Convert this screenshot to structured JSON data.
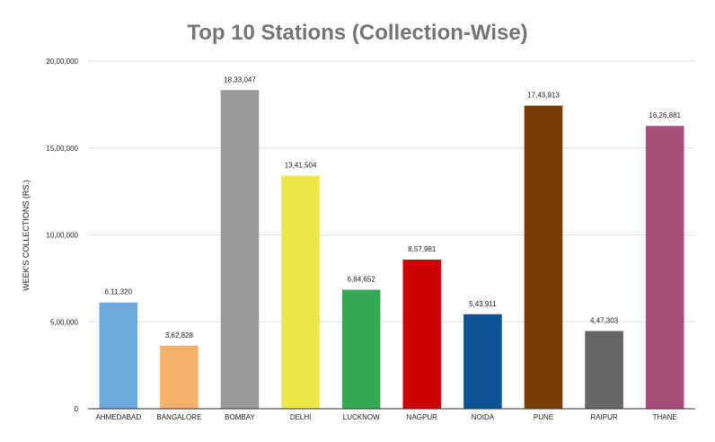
{
  "chart_data": {
    "type": "bar",
    "title": "Top 10 Stations (Collection-Wise)",
    "xlabel": "",
    "ylabel": "WEEK'S COLLECTIONS (RS.)",
    "ylim": [
      0,
      2000000
    ],
    "yticks": [
      0,
      500000,
      1000000,
      1500000,
      2000000
    ],
    "ytick_labels": [
      "0",
      "5,00,000",
      "10,00,000",
      "15,00,000",
      "20,00,000"
    ],
    "grid": true,
    "legend": "none",
    "categories": [
      "AHMEDABAD",
      "BANGALORE",
      "BOMBAY",
      "DELHI",
      "LUCKNOW",
      "NAGPUR",
      "NOIDA",
      "PUNE",
      "RAIPUR",
      "THANE"
    ],
    "values": [
      611320,
      362828,
      1833047,
      1341504,
      684652,
      857981,
      543911,
      1743913,
      447303,
      1626881
    ],
    "value_labels": [
      "6,11,320",
      "3,62,828",
      "18,33,047",
      "13,41,504",
      "6,84,652",
      "8,57,981",
      "5,43,911",
      "17,43,913",
      "4,47,303",
      "16,26,881"
    ],
    "colors": [
      "#6fa8dc",
      "#f6b26b",
      "#999999",
      "#ebe64a",
      "#34a853",
      "#cc0000",
      "#0b5394",
      "#783f04",
      "#666666",
      "#a64d79"
    ]
  }
}
